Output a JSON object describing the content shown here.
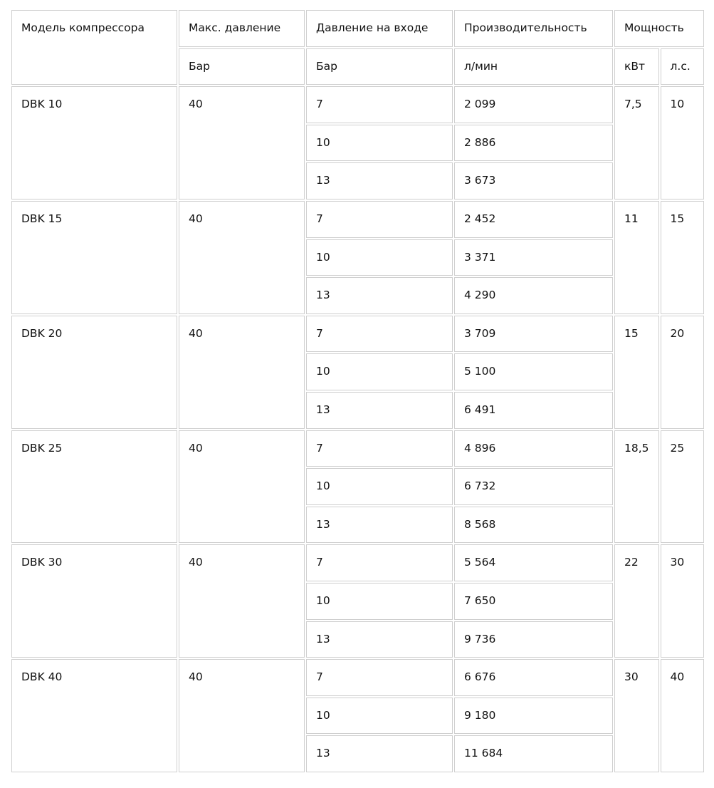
{
  "header": {
    "model": "Модель компрессора",
    "max_pressure": "Макс. давление",
    "inlet_pressure": "Давление на входе",
    "capacity": "Производительность",
    "power": "Мощность",
    "units": {
      "max_pressure": "Бар",
      "inlet_pressure": "Бар",
      "capacity": "л/мин",
      "kw": "кВт",
      "hp": "л.с."
    }
  },
  "rows": [
    {
      "model": "DBK 10",
      "max": "40",
      "kw": "7,5",
      "hp": "10",
      "sub": [
        {
          "p": "7",
          "q": "2 099"
        },
        {
          "p": "10",
          "q": "2 886"
        },
        {
          "p": "13",
          "q": "3 673"
        }
      ]
    },
    {
      "model": "DBK 15",
      "max": "40",
      "kw": "11",
      "hp": "15",
      "sub": [
        {
          "p": "7",
          "q": "2 452"
        },
        {
          "p": "10",
          "q": "3 371"
        },
        {
          "p": "13",
          "q": "4 290"
        }
      ]
    },
    {
      "model": "DBK 20",
      "max": "40",
      "kw": "15",
      "hp": "20",
      "sub": [
        {
          "p": "7",
          "q": "3 709"
        },
        {
          "p": "10",
          "q": "5 100"
        },
        {
          "p": "13",
          "q": "6 491"
        }
      ]
    },
    {
      "model": "DBK 25",
      "max": "40",
      "kw": "18,5",
      "hp": "25",
      "sub": [
        {
          "p": "7",
          "q": "4 896"
        },
        {
          "p": "10",
          "q": "6 732"
        },
        {
          "p": "13",
          "q": "8 568"
        }
      ]
    },
    {
      "model": "DBK 30",
      "max": "40",
      "kw": "22",
      "hp": "30",
      "sub": [
        {
          "p": "7",
          "q": "5 564"
        },
        {
          "p": "10",
          "q": "7 650"
        },
        {
          "p": "13",
          "q": "9 736"
        }
      ]
    },
    {
      "model": "DBK 40",
      "max": "40",
      "kw": "30",
      "hp": "40",
      "sub": [
        {
          "p": "7",
          "q": "6 676"
        },
        {
          "p": "10",
          "q": "9 180"
        },
        {
          "p": "13",
          "q": "11 684"
        }
      ]
    }
  ]
}
